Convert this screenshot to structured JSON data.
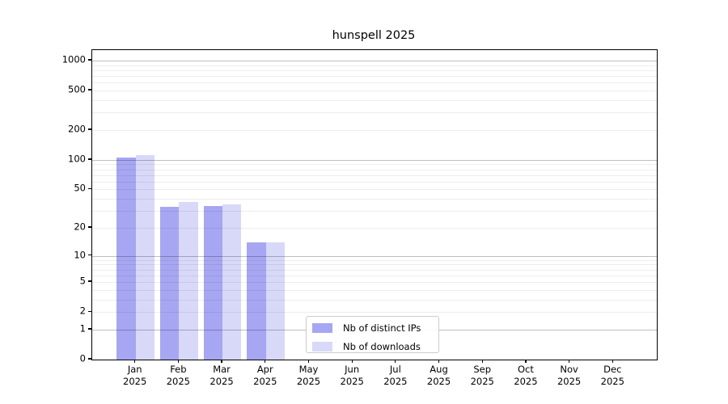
{
  "title": "hunspell 2025",
  "chart_data": {
    "type": "bar",
    "title": "hunspell 2025",
    "categories": [
      "Jan",
      "Feb",
      "Mar",
      "Apr",
      "May",
      "Jun",
      "Jul",
      "Aug",
      "Sep",
      "Oct",
      "Nov",
      "Dec"
    ],
    "year_label": "2025",
    "series": [
      {
        "name": "Nb of distinct IPs",
        "color": "#a6a6f2",
        "values": [
          106,
          33,
          34,
          14,
          0,
          0,
          0,
          0,
          0,
          0,
          0,
          0
        ]
      },
      {
        "name": "Nb of downloads",
        "color": "#d8d8f8",
        "values": [
          112,
          37,
          35,
          14,
          0,
          0,
          0,
          0,
          0,
          0,
          0,
          0
        ]
      }
    ],
    "xlabel": "",
    "ylabel": "",
    "y_axis": {
      "scale": "log10(1+v)",
      "tick_values": [
        0,
        1,
        2,
        5,
        10,
        20,
        50,
        100,
        200,
        500,
        1000
      ],
      "tick_labels": [
        "0",
        "1",
        "2",
        "5",
        "10",
        "20",
        "50",
        "100",
        "200",
        "500",
        "1000"
      ],
      "major_grid_values": [
        1,
        10,
        100,
        1000
      ],
      "minor_grid_multipliers": [
        2,
        3,
        4,
        5,
        6,
        7,
        8,
        9
      ],
      "ylim_bottom": 0
    },
    "grid": {
      "enabled": true,
      "major_color": "#bfbfbf",
      "minor_color": "#ececec"
    },
    "legend": {
      "position": "lower-center",
      "border_color": "#cccccc"
    }
  }
}
